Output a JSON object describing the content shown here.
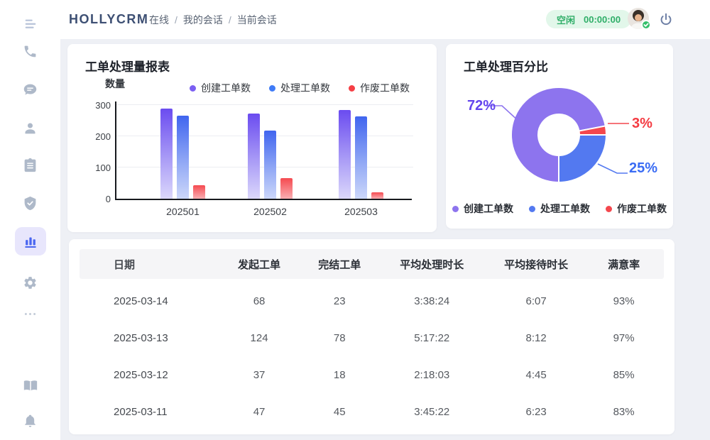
{
  "header": {
    "logo": "HOLLYCRM",
    "breadcrumb": {
      "items": [
        "在线",
        "我的会话",
        "当前会话"
      ],
      "separator": "/"
    },
    "status_pill": {
      "state": "空闲",
      "timer": "00:00:00"
    }
  },
  "sidebar": {
    "active_item": "bar-chart",
    "icons": [
      "menu",
      "phone",
      "chat",
      "user",
      "clipboard",
      "shield-check",
      "bar-chart",
      "gear",
      "more",
      "book",
      "bell"
    ]
  },
  "cards": {
    "bar_card": {
      "title": "工单处理量报表",
      "y_axis_label": "数量"
    },
    "donut_card": {
      "title": "工单处理百分比",
      "callouts": {
        "purple": "72%",
        "blue": "25%",
        "red": "3%"
      }
    }
  },
  "chart_data": [
    {
      "type": "bar",
      "title": "工单处理量报表",
      "ylabel": "数量",
      "categories": [
        "202501",
        "202502",
        "202503"
      ],
      "series": [
        {
          "name": "创建工单数",
          "color": "#7B5FF2",
          "values": [
            288,
            272,
            285
          ]
        },
        {
          "name": "处理工单数",
          "color": "#3F7BF7",
          "values": [
            265,
            218,
            263
          ]
        },
        {
          "name": "作废工单数",
          "color": "#F53F45",
          "values": [
            44,
            66,
            21
          ]
        }
      ],
      "ylim": [
        0,
        300
      ],
      "yticks": [
        0,
        100,
        200,
        300
      ],
      "grid": true,
      "legend_position": "top"
    },
    {
      "type": "pie",
      "title": "工单处理百分比",
      "labels": [
        "创建工单数",
        "处理工单数",
        "作废工单数"
      ],
      "values": [
        72,
        25,
        3
      ],
      "unit": "%",
      "colors": [
        "#8D74EE",
        "#5379F0",
        "#F4474D"
      ],
      "donut": true,
      "start_angle": 180,
      "draw_order": [
        0,
        2,
        1
      ],
      "legend_position": "bottom"
    }
  ],
  "table": {
    "headers": [
      "日期",
      "发起工单",
      "完结工单",
      "平均处理时长",
      "平均接待时长",
      "满意率"
    ],
    "rows": [
      [
        "2025-03-14",
        "68",
        "23",
        "3:38:24",
        "6:07",
        "93%"
      ],
      [
        "2025-03-13",
        "124",
        "78",
        "5:17:22",
        "8:12",
        "97%"
      ],
      [
        "2025-03-12",
        "37",
        "18",
        "2:18:03",
        "4:45",
        "85%"
      ],
      [
        "2025-03-11",
        "47",
        "45",
        "3:45:22",
        "6:23",
        "83%"
      ]
    ]
  }
}
